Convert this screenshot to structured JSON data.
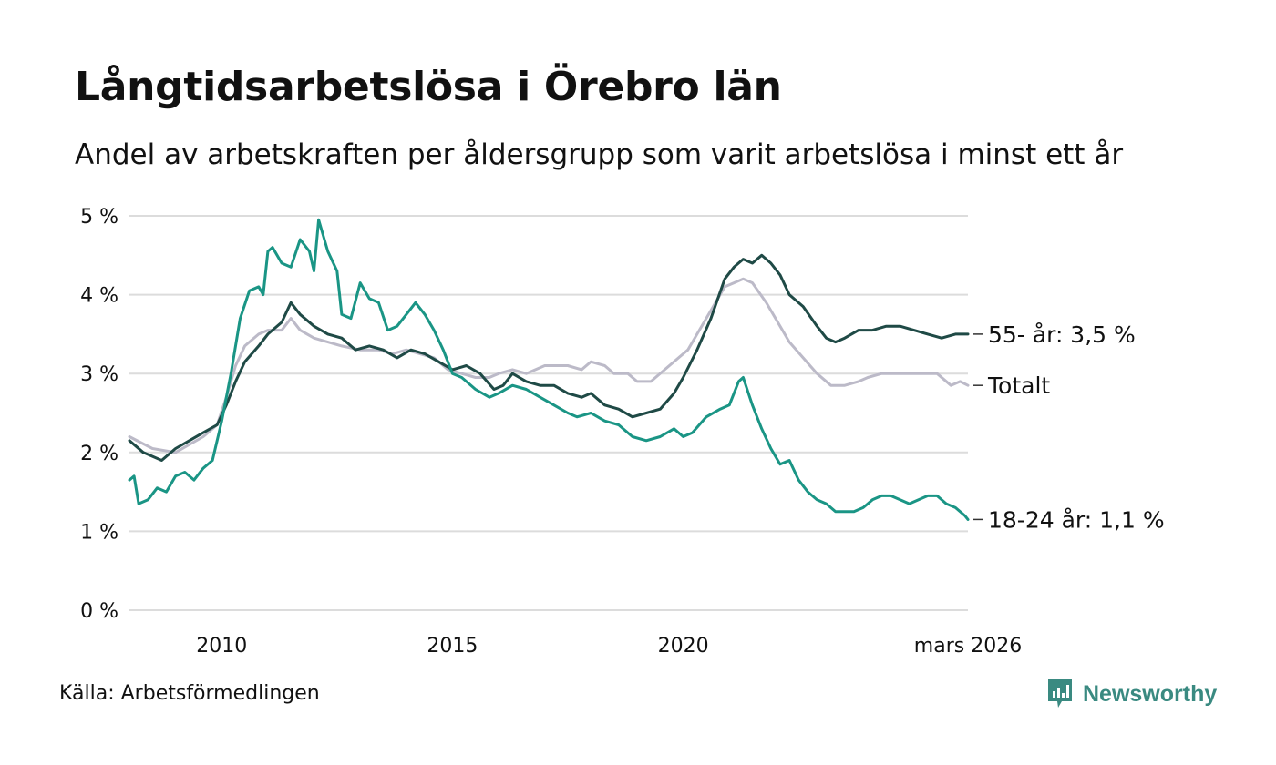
{
  "header": {
    "title": "Långtidsarbetslösa i Örebro län",
    "subtitle": "Andel av arbetskraften per åldersgrupp som varit arbetslösa i minst ett år"
  },
  "footer": {
    "source": "Källa: Arbetsförmedlingen",
    "brand": "Newsworthy",
    "brand_icon": "newsworthy-logo-icon"
  },
  "colors": {
    "grid": "#dcdcdc",
    "totalt": "#bcbac8",
    "age_55": "#1f4a46",
    "age_18_24": "#1a9585",
    "brand": "#3a8a81"
  },
  "chart_data": {
    "type": "line",
    "title": "Långtidsarbetslösa i Örebro län",
    "subtitle": "Andel av arbetskraften per åldersgrupp som varit arbetslösa i minst ett år",
    "xlabel": "",
    "ylabel": "",
    "xlim": [
      2008.0,
      2026.17
    ],
    "ylim": [
      0,
      5
    ],
    "grid": true,
    "y_ticks": [
      {
        "value": 0,
        "label": "0 %"
      },
      {
        "value": 1,
        "label": "1 %"
      },
      {
        "value": 2,
        "label": "2 %"
      },
      {
        "value": 3,
        "label": "3 %"
      },
      {
        "value": 4,
        "label": "4 %"
      },
      {
        "value": 5,
        "label": "5 %"
      }
    ],
    "x_ticks": [
      {
        "value": 2010,
        "label": "2010"
      },
      {
        "value": 2015,
        "label": "2015"
      },
      {
        "value": 2020,
        "label": "2020"
      },
      {
        "value": 2026.17,
        "label": "mars 2026"
      }
    ],
    "series": [
      {
        "name": "Totalt",
        "end_label": "Totalt",
        "color_key": "totalt",
        "points": [
          [
            2008.0,
            2.2
          ],
          [
            2008.5,
            2.05
          ],
          [
            2009.0,
            2.0
          ],
          [
            2009.3,
            2.1
          ],
          [
            2009.6,
            2.2
          ],
          [
            2009.9,
            2.35
          ],
          [
            2010.1,
            2.7
          ],
          [
            2010.3,
            3.1
          ],
          [
            2010.5,
            3.35
          ],
          [
            2010.8,
            3.5
          ],
          [
            2011.0,
            3.55
          ],
          [
            2011.3,
            3.55
          ],
          [
            2011.5,
            3.7
          ],
          [
            2011.7,
            3.55
          ],
          [
            2012.0,
            3.45
          ],
          [
            2012.3,
            3.4
          ],
          [
            2012.6,
            3.35
          ],
          [
            2013.0,
            3.3
          ],
          [
            2013.4,
            3.3
          ],
          [
            2013.7,
            3.25
          ],
          [
            2014.0,
            3.3
          ],
          [
            2014.3,
            3.25
          ],
          [
            2014.6,
            3.2
          ],
          [
            2014.9,
            3.05
          ],
          [
            2015.2,
            3.0
          ],
          [
            2015.5,
            2.95
          ],
          [
            2015.8,
            2.95
          ],
          [
            2016.0,
            3.0
          ],
          [
            2016.3,
            3.05
          ],
          [
            2016.6,
            3.0
          ],
          [
            2017.0,
            3.1
          ],
          [
            2017.5,
            3.1
          ],
          [
            2017.8,
            3.05
          ],
          [
            2018.0,
            3.15
          ],
          [
            2018.3,
            3.1
          ],
          [
            2018.5,
            3.0
          ],
          [
            2018.8,
            3.0
          ],
          [
            2019.0,
            2.9
          ],
          [
            2019.3,
            2.9
          ],
          [
            2019.6,
            3.05
          ],
          [
            2019.9,
            3.2
          ],
          [
            2020.1,
            3.3
          ],
          [
            2020.3,
            3.5
          ],
          [
            2020.6,
            3.8
          ],
          [
            2020.9,
            4.1
          ],
          [
            2021.1,
            4.15
          ],
          [
            2021.3,
            4.2
          ],
          [
            2021.5,
            4.15
          ],
          [
            2021.8,
            3.9
          ],
          [
            2022.0,
            3.7
          ],
          [
            2022.3,
            3.4
          ],
          [
            2022.6,
            3.2
          ],
          [
            2022.9,
            3.0
          ],
          [
            2023.2,
            2.85
          ],
          [
            2023.5,
            2.85
          ],
          [
            2023.8,
            2.9
          ],
          [
            2024.0,
            2.95
          ],
          [
            2024.3,
            3.0
          ],
          [
            2024.6,
            3.0
          ],
          [
            2024.9,
            3.0
          ],
          [
            2025.2,
            3.0
          ],
          [
            2025.5,
            3.0
          ],
          [
            2025.8,
            2.85
          ],
          [
            2026.0,
            2.9
          ],
          [
            2026.17,
            2.85
          ]
        ]
      },
      {
        "name": "55- år",
        "end_label": "55- år: 3,5 %",
        "color_key": "age_55",
        "points": [
          [
            2008.0,
            2.15
          ],
          [
            2008.3,
            2.0
          ],
          [
            2008.5,
            1.95
          ],
          [
            2008.7,
            1.9
          ],
          [
            2009.0,
            2.05
          ],
          [
            2009.3,
            2.15
          ],
          [
            2009.6,
            2.25
          ],
          [
            2009.9,
            2.35
          ],
          [
            2010.1,
            2.6
          ],
          [
            2010.3,
            2.9
          ],
          [
            2010.5,
            3.15
          ],
          [
            2010.8,
            3.35
          ],
          [
            2011.0,
            3.5
          ],
          [
            2011.3,
            3.65
          ],
          [
            2011.5,
            3.9
          ],
          [
            2011.7,
            3.75
          ],
          [
            2012.0,
            3.6
          ],
          [
            2012.3,
            3.5
          ],
          [
            2012.6,
            3.45
          ],
          [
            2012.9,
            3.3
          ],
          [
            2013.2,
            3.35
          ],
          [
            2013.5,
            3.3
          ],
          [
            2013.8,
            3.2
          ],
          [
            2014.1,
            3.3
          ],
          [
            2014.4,
            3.25
          ],
          [
            2014.7,
            3.15
          ],
          [
            2015.0,
            3.05
          ],
          [
            2015.3,
            3.1
          ],
          [
            2015.6,
            3.0
          ],
          [
            2015.9,
            2.8
          ],
          [
            2016.1,
            2.85
          ],
          [
            2016.3,
            3.0
          ],
          [
            2016.6,
            2.9
          ],
          [
            2016.9,
            2.85
          ],
          [
            2017.2,
            2.85
          ],
          [
            2017.5,
            2.75
          ],
          [
            2017.8,
            2.7
          ],
          [
            2018.0,
            2.75
          ],
          [
            2018.3,
            2.6
          ],
          [
            2018.6,
            2.55
          ],
          [
            2018.9,
            2.45
          ],
          [
            2019.2,
            2.5
          ],
          [
            2019.5,
            2.55
          ],
          [
            2019.8,
            2.75
          ],
          [
            2020.0,
            2.95
          ],
          [
            2020.3,
            3.3
          ],
          [
            2020.6,
            3.7
          ],
          [
            2020.9,
            4.2
          ],
          [
            2021.1,
            4.35
          ],
          [
            2021.3,
            4.45
          ],
          [
            2021.5,
            4.4
          ],
          [
            2021.7,
            4.5
          ],
          [
            2021.9,
            4.4
          ],
          [
            2022.1,
            4.25
          ],
          [
            2022.3,
            4.0
          ],
          [
            2022.6,
            3.85
          ],
          [
            2022.9,
            3.6
          ],
          [
            2023.1,
            3.45
          ],
          [
            2023.3,
            3.4
          ],
          [
            2023.5,
            3.45
          ],
          [
            2023.8,
            3.55
          ],
          [
            2024.1,
            3.55
          ],
          [
            2024.4,
            3.6
          ],
          [
            2024.7,
            3.6
          ],
          [
            2025.0,
            3.55
          ],
          [
            2025.3,
            3.5
          ],
          [
            2025.6,
            3.45
          ],
          [
            2025.9,
            3.5
          ],
          [
            2026.17,
            3.5
          ]
        ]
      },
      {
        "name": "18-24 år",
        "end_label": "18-24 år: 1,1 %",
        "color_key": "age_18_24",
        "points": [
          [
            2008.0,
            1.65
          ],
          [
            2008.1,
            1.7
          ],
          [
            2008.2,
            1.35
          ],
          [
            2008.4,
            1.4
          ],
          [
            2008.6,
            1.55
          ],
          [
            2008.8,
            1.5
          ],
          [
            2009.0,
            1.7
          ],
          [
            2009.2,
            1.75
          ],
          [
            2009.4,
            1.65
          ],
          [
            2009.6,
            1.8
          ],
          [
            2009.8,
            1.9
          ],
          [
            2010.0,
            2.4
          ],
          [
            2010.2,
            3.0
          ],
          [
            2010.4,
            3.7
          ],
          [
            2010.6,
            4.05
          ],
          [
            2010.8,
            4.1
          ],
          [
            2010.9,
            4.0
          ],
          [
            2011.0,
            4.55
          ],
          [
            2011.1,
            4.6
          ],
          [
            2011.3,
            4.4
          ],
          [
            2011.5,
            4.35
          ],
          [
            2011.7,
            4.7
          ],
          [
            2011.9,
            4.55
          ],
          [
            2012.0,
            4.3
          ],
          [
            2012.1,
            4.95
          ],
          [
            2012.3,
            4.55
          ],
          [
            2012.5,
            4.3
          ],
          [
            2012.6,
            3.75
          ],
          [
            2012.8,
            3.7
          ],
          [
            2013.0,
            4.15
          ],
          [
            2013.2,
            3.95
          ],
          [
            2013.4,
            3.9
          ],
          [
            2013.6,
            3.55
          ],
          [
            2013.8,
            3.6
          ],
          [
            2014.0,
            3.75
          ],
          [
            2014.2,
            3.9
          ],
          [
            2014.4,
            3.75
          ],
          [
            2014.6,
            3.55
          ],
          [
            2014.8,
            3.3
          ],
          [
            2015.0,
            3.0
          ],
          [
            2015.2,
            2.95
          ],
          [
            2015.5,
            2.8
          ],
          [
            2015.8,
            2.7
          ],
          [
            2016.0,
            2.75
          ],
          [
            2016.3,
            2.85
          ],
          [
            2016.6,
            2.8
          ],
          [
            2016.9,
            2.7
          ],
          [
            2017.2,
            2.6
          ],
          [
            2017.5,
            2.5
          ],
          [
            2017.7,
            2.45
          ],
          [
            2018.0,
            2.5
          ],
          [
            2018.3,
            2.4
          ],
          [
            2018.6,
            2.35
          ],
          [
            2018.9,
            2.2
          ],
          [
            2019.2,
            2.15
          ],
          [
            2019.5,
            2.2
          ],
          [
            2019.8,
            2.3
          ],
          [
            2020.0,
            2.2
          ],
          [
            2020.2,
            2.25
          ],
          [
            2020.5,
            2.45
          ],
          [
            2020.8,
            2.55
          ],
          [
            2021.0,
            2.6
          ],
          [
            2021.2,
            2.9
          ],
          [
            2021.3,
            2.95
          ],
          [
            2021.5,
            2.6
          ],
          [
            2021.7,
            2.3
          ],
          [
            2021.9,
            2.05
          ],
          [
            2022.1,
            1.85
          ],
          [
            2022.3,
            1.9
          ],
          [
            2022.5,
            1.65
          ],
          [
            2022.7,
            1.5
          ],
          [
            2022.9,
            1.4
          ],
          [
            2023.1,
            1.35
          ],
          [
            2023.3,
            1.25
          ],
          [
            2023.5,
            1.25
          ],
          [
            2023.7,
            1.25
          ],
          [
            2023.9,
            1.3
          ],
          [
            2024.1,
            1.4
          ],
          [
            2024.3,
            1.45
          ],
          [
            2024.5,
            1.45
          ],
          [
            2024.7,
            1.4
          ],
          [
            2024.9,
            1.35
          ],
          [
            2025.1,
            1.4
          ],
          [
            2025.3,
            1.45
          ],
          [
            2025.5,
            1.45
          ],
          [
            2025.7,
            1.35
          ],
          [
            2025.9,
            1.3
          ],
          [
            2026.1,
            1.2
          ],
          [
            2026.17,
            1.15
          ]
        ]
      }
    ]
  }
}
